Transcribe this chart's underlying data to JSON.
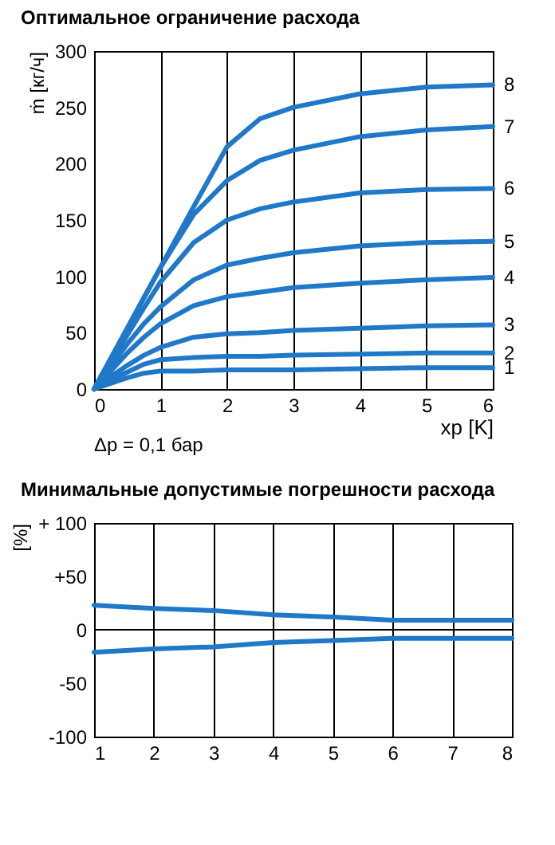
{
  "chart_data": [
    {
      "type": "line",
      "title": "Оптимальное ограничение расхода",
      "xlabel": "xp [K]",
      "ylabel": "ṁ [кг/ч]",
      "x": [
        0,
        0.25,
        0.5,
        0.75,
        1,
        1.5,
        2,
        2.5,
        3,
        4,
        5,
        6
      ],
      "xlim": [
        0,
        6
      ],
      "xticks": [
        0,
        1,
        2,
        3,
        4,
        5,
        6
      ],
      "ylim": [
        0,
        300
      ],
      "yticks": [
        0,
        50,
        100,
        150,
        200,
        250,
        300
      ],
      "grid": "x",
      "annotations": [
        "Δp = 0,1 бар"
      ],
      "series": [
        {
          "name": "1",
          "color": "#1f78c8",
          "values": [
            0,
            5,
            10,
            14,
            16,
            16,
            17,
            17,
            17,
            18,
            19,
            19
          ]
        },
        {
          "name": "2",
          "color": "#1f78c8",
          "values": [
            0,
            8,
            15,
            22,
            26,
            28,
            29,
            29,
            30,
            31,
            32,
            32
          ]
        },
        {
          "name": "3",
          "color": "#1f78c8",
          "values": [
            0,
            11,
            21,
            30,
            37,
            46,
            49,
            50,
            52,
            54,
            56,
            57
          ]
        },
        {
          "name": "4",
          "color": "#1f78c8",
          "values": [
            0,
            16,
            32,
            46,
            58,
            74,
            82,
            86,
            90,
            94,
            97,
            99
          ]
        },
        {
          "name": "5",
          "color": "#1f78c8",
          "values": [
            0,
            20,
            40,
            58,
            73,
            97,
            110,
            116,
            121,
            127,
            130,
            131
          ]
        },
        {
          "name": "6",
          "color": "#1f78c8",
          "values": [
            0,
            24,
            48,
            72,
            95,
            130,
            150,
            160,
            166,
            174,
            177,
            178
          ]
        },
        {
          "name": "7",
          "color": "#1f78c8",
          "values": [
            0,
            27,
            54,
            81,
            108,
            155,
            185,
            203,
            212,
            224,
            230,
            233
          ]
        },
        {
          "name": "8",
          "color": "#1f78c8",
          "values": [
            0,
            27,
            54,
            81,
            108,
            162,
            215,
            240,
            250,
            262,
            268,
            270
          ]
        }
      ]
    },
    {
      "type": "line",
      "title": "Минимальные допустимые погрешности расхода",
      "ylabel": "[%]",
      "x": [
        1,
        2,
        3,
        4,
        5,
        6,
        7,
        8
      ],
      "xlim": [
        1,
        8
      ],
      "xticks": [
        1,
        2,
        3,
        4,
        5,
        6,
        7,
        8
      ],
      "ylim": [
        -100,
        100
      ],
      "yticks": [
        {
          "value": 100,
          "label": "+ 100"
        },
        {
          "value": 50,
          "label": "+50"
        },
        0,
        -50,
        -100
      ],
      "grid": "x",
      "ref_lines": [
        {
          "axis": "y",
          "value": 0,
          "color": "#000000"
        }
      ],
      "series": [
        {
          "color": "#1f78c8",
          "values": [
            23,
            20,
            18,
            14,
            12,
            9,
            9,
            9
          ]
        },
        {
          "color": "#1f78c8",
          "values": [
            -21,
            -18,
            -16,
            -12,
            -10,
            -8,
            -8,
            -8
          ]
        }
      ]
    }
  ]
}
